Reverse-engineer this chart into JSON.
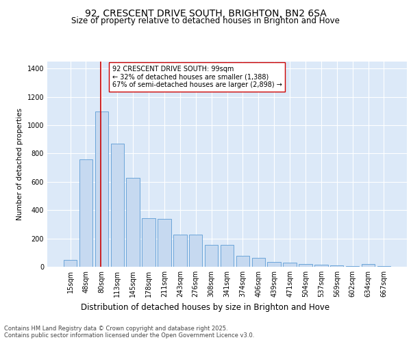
{
  "title": "92, CRESCENT DRIVE SOUTH, BRIGHTON, BN2 6SA",
  "subtitle": "Size of property relative to detached houses in Brighton and Hove",
  "xlabel": "Distribution of detached houses by size in Brighton and Hove",
  "ylabel": "Number of detached properties",
  "categories": [
    "15sqm",
    "48sqm",
    "80sqm",
    "113sqm",
    "145sqm",
    "178sqm",
    "211sqm",
    "243sqm",
    "276sqm",
    "308sqm",
    "341sqm",
    "374sqm",
    "406sqm",
    "439sqm",
    "471sqm",
    "504sqm",
    "537sqm",
    "569sqm",
    "602sqm",
    "634sqm",
    "667sqm"
  ],
  "values": [
    50,
    760,
    1095,
    870,
    630,
    345,
    340,
    225,
    225,
    155,
    155,
    75,
    65,
    35,
    30,
    20,
    15,
    10,
    5,
    20,
    5
  ],
  "bar_color": "#c6d9f0",
  "bar_edge_color": "#5b9bd5",
  "background_color": "#dce9f8",
  "grid_color": "#ffffff",
  "vline_color": "#cc0000",
  "vline_x_index": 2.0,
  "annotation_text": "92 CRESCENT DRIVE SOUTH: 99sqm\n← 32% of detached houses are smaller (1,388)\n67% of semi-detached houses are larger (2,898) →",
  "annotation_box_color": "#ffffff",
  "annotation_box_edge": "#cc0000",
  "footer": "Contains HM Land Registry data © Crown copyright and database right 2025.\nContains public sector information licensed under the Open Government Licence v3.0.",
  "ylim": [
    0,
    1450
  ],
  "yticks": [
    0,
    200,
    400,
    600,
    800,
    1000,
    1200,
    1400
  ],
  "title_fontsize": 10,
  "subtitle_fontsize": 8.5,
  "xlabel_fontsize": 8.5,
  "ylabel_fontsize": 7.5,
  "tick_fontsize": 7,
  "annotation_fontsize": 7,
  "footer_fontsize": 6
}
